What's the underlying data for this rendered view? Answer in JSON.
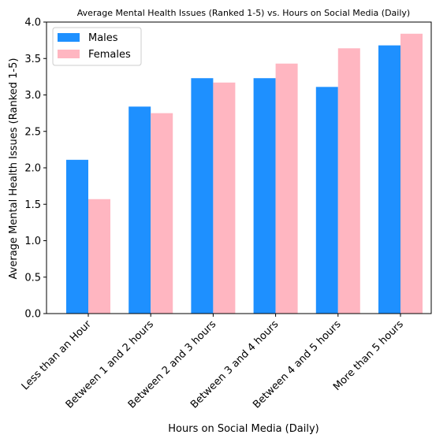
{
  "chart_data": {
    "type": "bar",
    "title": "Average Mental Health Issues (Ranked 1-5) vs. Hours on Social Media (Daily)",
    "xlabel": "Hours on Social Media (Daily)",
    "ylabel": "Average Mental Health Issues (Ranked 1-5)",
    "categories": [
      "Less than an Hour",
      "Between 1 and 2 hours",
      "Between 2 and 3 hours",
      "Between 3 and 4 hours",
      "Between 4 and 5 hours",
      "More than 5 hours"
    ],
    "series": [
      {
        "name": "Males",
        "color": "#1e90ff",
        "values": [
          2.11,
          2.84,
          3.23,
          3.23,
          3.11,
          3.68
        ]
      },
      {
        "name": "Females",
        "color": "#ffb6c1",
        "values": [
          1.57,
          2.75,
          3.17,
          3.43,
          3.64,
          3.84
        ]
      }
    ],
    "ylim": [
      0,
      4.0
    ],
    "yticks": [
      "0.0",
      "0.5",
      "1.0",
      "1.5",
      "2.0",
      "2.5",
      "3.0",
      "3.5",
      "4.0"
    ],
    "grid": false,
    "legend_position": "top-left"
  }
}
